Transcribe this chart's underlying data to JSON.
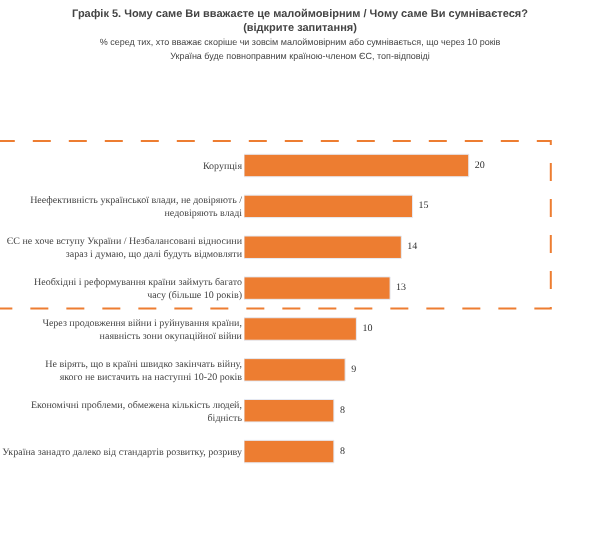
{
  "chart_data": {
    "type": "bar",
    "orientation": "horizontal",
    "title": "Графік 5. Чому саме Ви вважаєте це малоймовірним / Чому саме Ви сумніваєтеся?\n(відкрите запитання)",
    "subtitle": "% серед тих, хто вважає скоріше чи зовсім малоймовірним або сумнівається, що через 10 років\nУкраїна буде повноправним країною-членом ЄС, топ-відповіді",
    "categories": [
      "Корупція",
      "Неефективність української влади, не довіряють /\nнедовіряють владі",
      "ЄС не хоче вступу України / Незбалансовані відносини\nзараз і думаю, що далі будуть відмовляти",
      "Необхідні і реформування країни займуть багато\nчасу (більше 10 років)",
      "Через продовження війни і руйнування країни,\nнаявність зони окупаційної війни",
      "Не вірять, що в країні швидко закінчать війну,\nякого не вистачить на наступні 10-20 років",
      "Економічні проблеми, обмежена кількість людей,\nбідність",
      "Україна занадто далеко від стандартів розвитку, розриву"
    ],
    "values": [
      20,
      15,
      14,
      13,
      10,
      9,
      8,
      8
    ],
    "color": "#ed7d31",
    "data_labels": true,
    "legend": false
  }
}
